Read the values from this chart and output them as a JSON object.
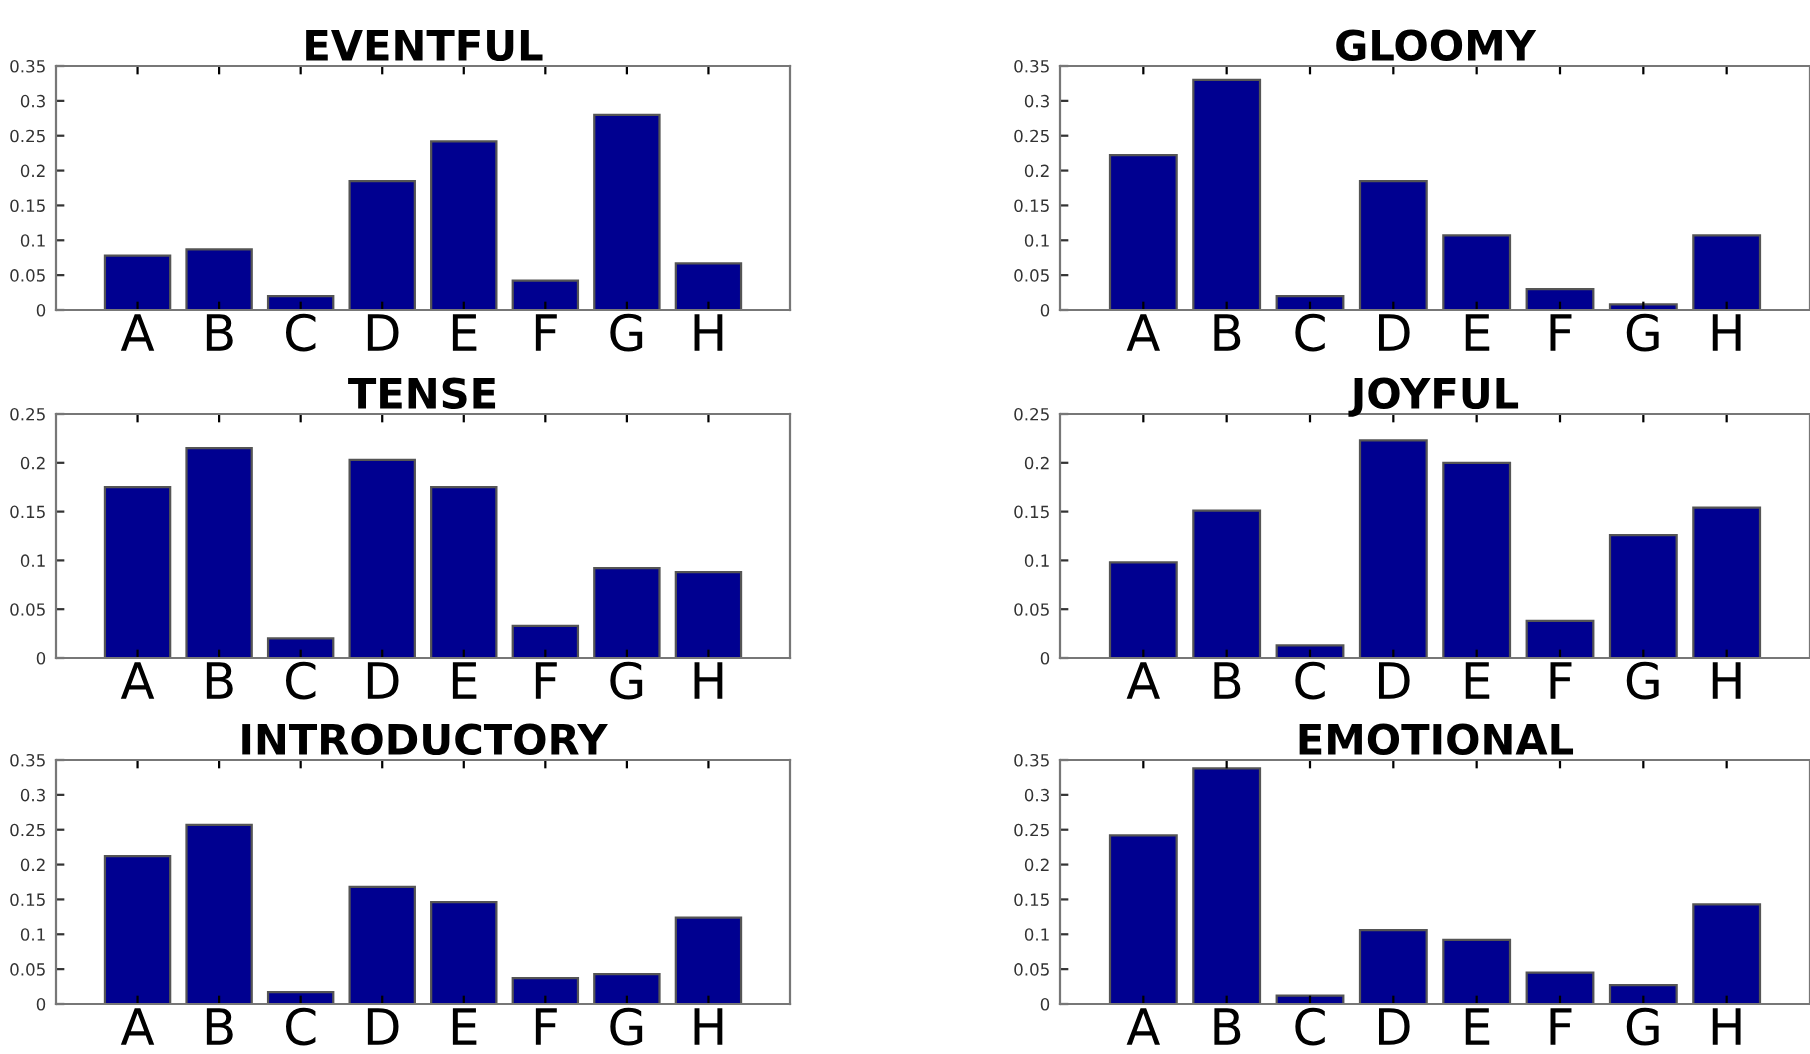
{
  "chart_data": [
    {
      "type": "bar",
      "title": "EVENTFUL",
      "categories": [
        "A",
        "B",
        "C",
        "D",
        "E",
        "F",
        "G",
        "H"
      ],
      "values": [
        0.078,
        0.087,
        0.02,
        0.185,
        0.242,
        0.042,
        0.28,
        0.067
      ],
      "color": "#000090",
      "ylim": [
        0,
        0.35
      ],
      "yticks": [
        0,
        0.05,
        0.1,
        0.15,
        0.2,
        0.25,
        0.3,
        0.35
      ],
      "grid": false
    },
    {
      "type": "bar",
      "title": "GLOOMY",
      "categories": [
        "A",
        "B",
        "C",
        "D",
        "E",
        "F",
        "G",
        "H"
      ],
      "values": [
        0.222,
        0.33,
        0.02,
        0.185,
        0.107,
        0.03,
        0.008,
        0.107
      ],
      "color": "#000090",
      "ylim": [
        0,
        0.35
      ],
      "yticks": [
        0,
        0.05,
        0.1,
        0.15,
        0.2,
        0.25,
        0.3,
        0.35
      ],
      "grid": false
    },
    {
      "type": "bar",
      "title": "TENSE",
      "categories": [
        "A",
        "B",
        "C",
        "D",
        "E",
        "F",
        "G",
        "H"
      ],
      "values": [
        0.175,
        0.215,
        0.02,
        0.203,
        0.175,
        0.033,
        0.092,
        0.088
      ],
      "color": "#000090",
      "ylim": [
        0,
        0.25
      ],
      "yticks": [
        0,
        0.05,
        0.1,
        0.15,
        0.2,
        0.25
      ],
      "grid": false
    },
    {
      "type": "bar",
      "title": "JOYFUL",
      "categories": [
        "A",
        "B",
        "C",
        "D",
        "E",
        "F",
        "G",
        "H"
      ],
      "values": [
        0.098,
        0.151,
        0.013,
        0.223,
        0.2,
        0.038,
        0.126,
        0.154
      ],
      "color": "#000090",
      "ylim": [
        0,
        0.25
      ],
      "yticks": [
        0,
        0.05,
        0.1,
        0.15,
        0.2,
        0.25
      ],
      "grid": false
    },
    {
      "type": "bar",
      "title": "INTRODUCTORY",
      "categories": [
        "A",
        "B",
        "C",
        "D",
        "E",
        "F",
        "G",
        "H"
      ],
      "values": [
        0.212,
        0.257,
        0.017,
        0.168,
        0.146,
        0.037,
        0.043,
        0.124
      ],
      "color": "#000090",
      "ylim": [
        0,
        0.35
      ],
      "yticks": [
        0,
        0.05,
        0.1,
        0.15,
        0.2,
        0.25,
        0.3,
        0.35
      ],
      "grid": false
    },
    {
      "type": "bar",
      "title": "EMOTIONAL",
      "categories": [
        "A",
        "B",
        "C",
        "D",
        "E",
        "F",
        "G",
        "H"
      ],
      "values": [
        0.242,
        0.338,
        0.012,
        0.106,
        0.092,
        0.045,
        0.027,
        0.143
      ],
      "color": "#000090",
      "ylim": [
        0,
        0.35
      ],
      "yticks": [
        0,
        0.05,
        0.1,
        0.15,
        0.2,
        0.25,
        0.3,
        0.35
      ],
      "grid": false
    }
  ]
}
